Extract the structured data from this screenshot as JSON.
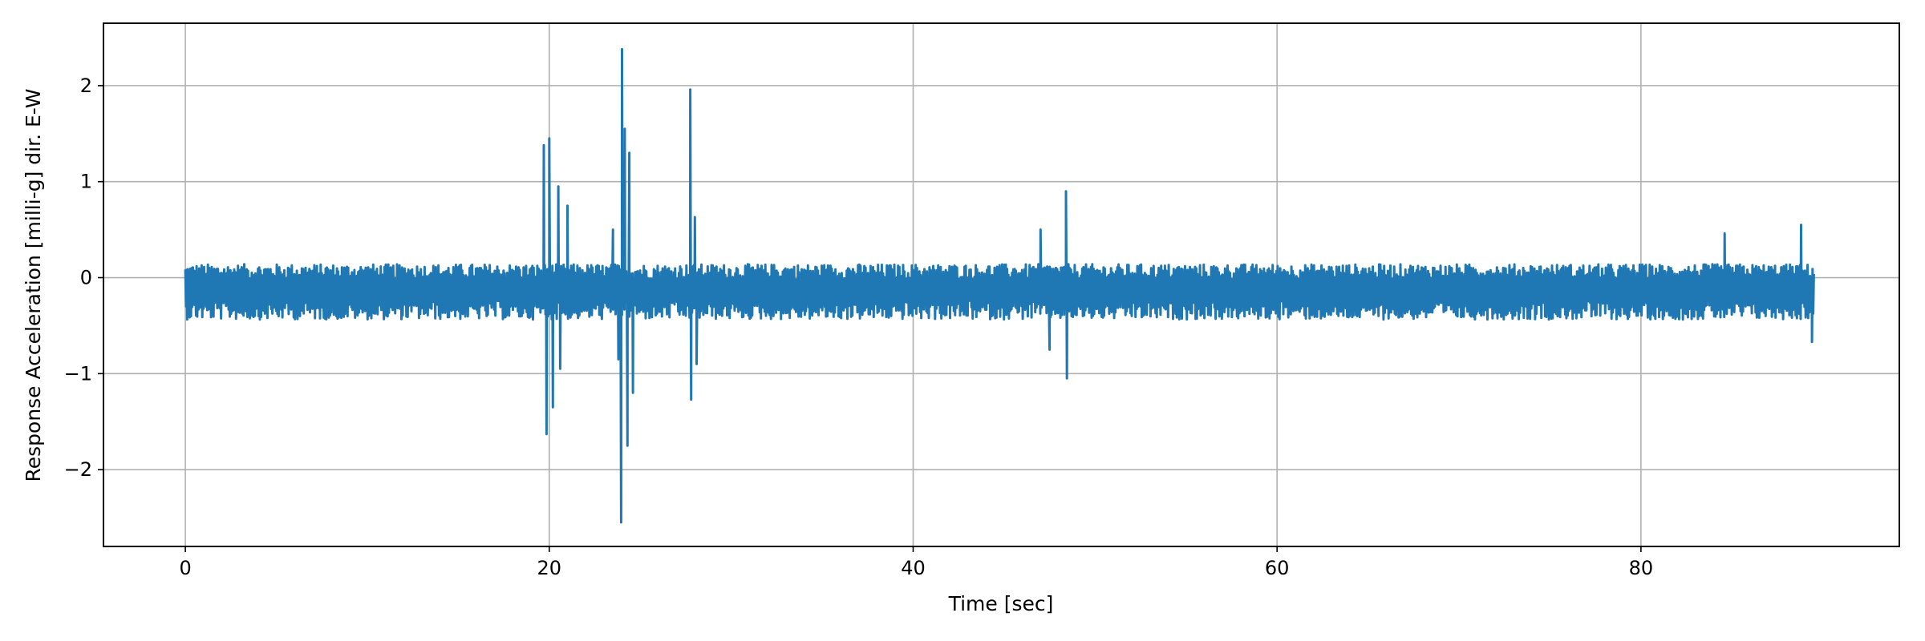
{
  "chart_data": {
    "type": "line",
    "xlabel": "Time [sec]",
    "ylabel": "Response Acceleration [milli-g] dir. E-W",
    "xlim": [
      -4.5,
      94.2
    ],
    "ylim": [
      -2.8,
      2.65
    ],
    "x_ticks": [
      0,
      20,
      40,
      60,
      80
    ],
    "y_ticks": [
      -2,
      -1,
      0,
      1,
      2
    ],
    "grid": true,
    "series": [
      {
        "color": "#1f77b4",
        "x_range": [
          0,
          89.5
        ],
        "baseline": -0.13,
        "noise_amplitude": 0.18,
        "envelope_min": -0.6,
        "envelope_max": 0.35,
        "peaks": [
          {
            "x": 19.7,
            "y": 1.38
          },
          {
            "x": 19.85,
            "y": -1.63
          },
          {
            "x": 20.0,
            "y": 1.45
          },
          {
            "x": 20.2,
            "y": -1.35
          },
          {
            "x": 20.5,
            "y": 0.95
          },
          {
            "x": 20.6,
            "y": -0.95
          },
          {
            "x": 21.0,
            "y": 0.75
          },
          {
            "x": 23.5,
            "y": 0.5
          },
          {
            "x": 23.8,
            "y": -0.85
          },
          {
            "x": 23.95,
            "y": -2.55
          },
          {
            "x": 24.0,
            "y": 2.38
          },
          {
            "x": 24.15,
            "y": 1.55
          },
          {
            "x": 24.3,
            "y": -1.75
          },
          {
            "x": 24.4,
            "y": 1.3
          },
          {
            "x": 24.6,
            "y": -1.2
          },
          {
            "x": 27.75,
            "y": 1.96
          },
          {
            "x": 27.8,
            "y": -1.27
          },
          {
            "x": 28.0,
            "y": 0.63
          },
          {
            "x": 28.1,
            "y": -0.9
          },
          {
            "x": 47.0,
            "y": 0.5
          },
          {
            "x": 47.5,
            "y": -0.75
          },
          {
            "x": 48.4,
            "y": 0.9
          },
          {
            "x": 48.45,
            "y": -1.05
          },
          {
            "x": 84.6,
            "y": 0.46
          },
          {
            "x": 88.8,
            "y": 0.55
          },
          {
            "x": 89.4,
            "y": -0.67
          }
        ]
      }
    ]
  }
}
